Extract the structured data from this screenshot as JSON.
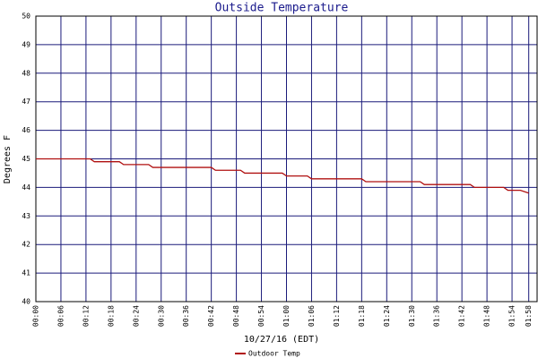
{
  "chart_data": {
    "type": "line",
    "title": "Outside Temperature",
    "y_label": "Degrees F",
    "x_label": "10/27/16 (EDT)",
    "xlim": [
      0,
      120
    ],
    "xticks": [
      {
        "value": 0,
        "label": "00:00"
      },
      {
        "value": 6,
        "label": "00:06"
      },
      {
        "value": 12,
        "label": "00:12"
      },
      {
        "value": 18,
        "label": "00:18"
      },
      {
        "value": 24,
        "label": "00:24"
      },
      {
        "value": 30,
        "label": "00:30"
      },
      {
        "value": 36,
        "label": "00:36"
      },
      {
        "value": 42,
        "label": "00:42"
      },
      {
        "value": 48,
        "label": "00:48"
      },
      {
        "value": 54,
        "label": "00:54"
      },
      {
        "value": 60,
        "label": "01:00"
      },
      {
        "value": 66,
        "label": "01:06"
      },
      {
        "value": 72,
        "label": "01:12"
      },
      {
        "value": 78,
        "label": "01:18"
      },
      {
        "value": 84,
        "label": "01:24"
      },
      {
        "value": 90,
        "label": "01:30"
      },
      {
        "value": 96,
        "label": "01:36"
      },
      {
        "value": 102,
        "label": "01:42"
      },
      {
        "value": 108,
        "label": "01:48"
      },
      {
        "value": 114,
        "label": "01:54"
      },
      {
        "value": 118,
        "label": "01:58"
      }
    ],
    "ylim": [
      40,
      50
    ],
    "yticks": [
      40,
      41,
      42,
      43,
      44,
      45,
      46,
      47,
      48,
      49,
      50
    ],
    "grid": true,
    "grid_color": "#1a1a7a",
    "legend": "bottom",
    "series": [
      {
        "name": "Outdoor Temp",
        "color": "#b01010",
        "x": [
          0,
          13,
          14,
          20,
          21,
          27,
          28,
          42,
          43,
          49,
          50,
          59,
          60,
          65,
          66,
          78,
          79,
          92,
          93,
          104,
          105,
          112,
          113,
          116,
          118
        ],
        "values": [
          45,
          45,
          44.9,
          44.9,
          44.8,
          44.8,
          44.7,
          44.7,
          44.6,
          44.6,
          44.5,
          44.5,
          44.4,
          44.4,
          44.3,
          44.3,
          44.2,
          44.2,
          44.1,
          44.1,
          44,
          44,
          43.9,
          43.9,
          43.8
        ]
      }
    ]
  }
}
